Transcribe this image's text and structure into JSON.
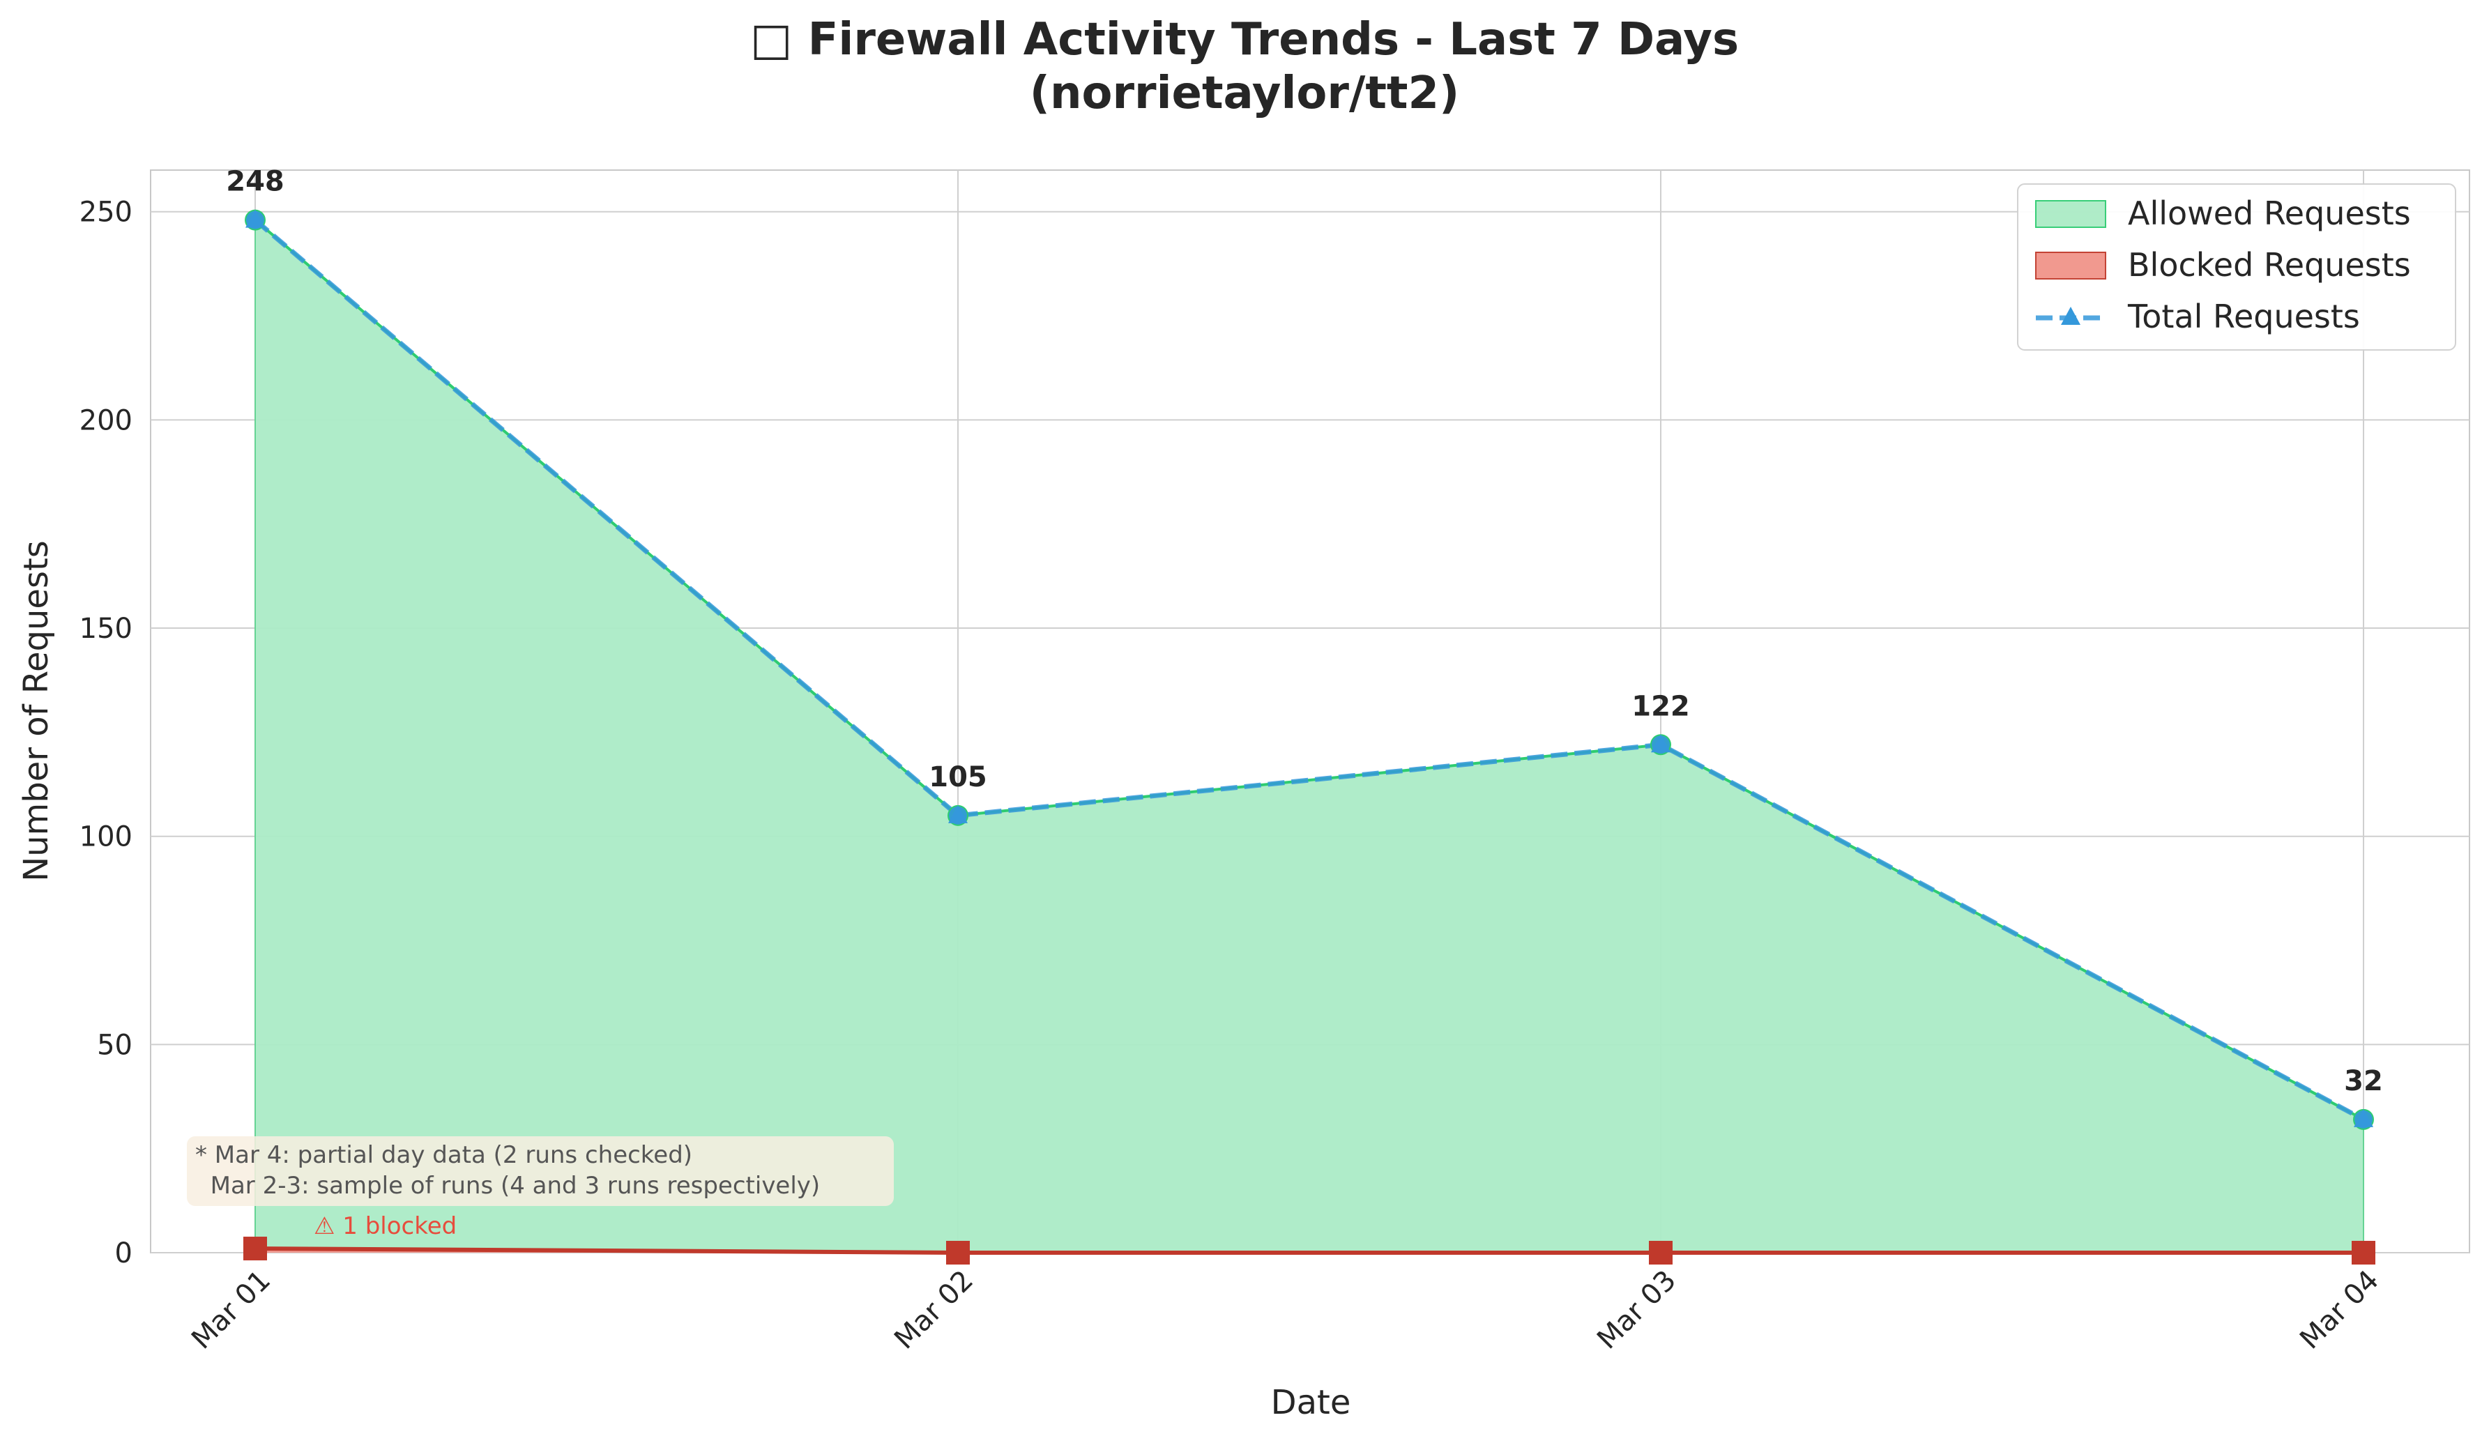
{
  "colors": {
    "allowed_fill": "#abebc6",
    "allowed_line": "#2ecc71",
    "blocked_fill": "#f1948a",
    "blocked_line": "#c0392b",
    "total_line": "#3498db",
    "grid": "#cfcfcf",
    "annotation_text": "#555555",
    "warning_text": "#e74c3c",
    "note_box": "#f8efe0",
    "text": "#262626"
  },
  "chart_data": {
    "type": "area",
    "title_line1": "□ Firewall Activity Trends - Last 7 Days",
    "title_line2": "(norrietaylor/tt2)",
    "xlabel": "Date",
    "ylabel": "Number of Requests",
    "categories": [
      "Mar 01",
      "Mar 02",
      "Mar 03",
      "Mar 04"
    ],
    "ylim": [
      0,
      260
    ],
    "yticks": [
      "0",
      "50",
      "100",
      "150",
      "200",
      "250"
    ],
    "grid": true,
    "legend_placement": "top-right",
    "series": [
      {
        "name": "Allowed Requests",
        "values": [
          247,
          105,
          122,
          32
        ]
      },
      {
        "name": "Blocked Requests",
        "values": [
          1,
          0,
          0,
          0
        ]
      },
      {
        "name": "Total Requests",
        "values": [
          248,
          105,
          122,
          32
        ]
      }
    ],
    "data_labels": [
      "248",
      "105",
      "122",
      "32"
    ],
    "annotations": {
      "blocked_note": "⚠ 1 blocked",
      "note_line1": "* Mar 4: partial day data (2 runs checked)",
      "note_line2": "  Mar 2-3: sample of runs (4 and 3 runs respectively)"
    }
  }
}
